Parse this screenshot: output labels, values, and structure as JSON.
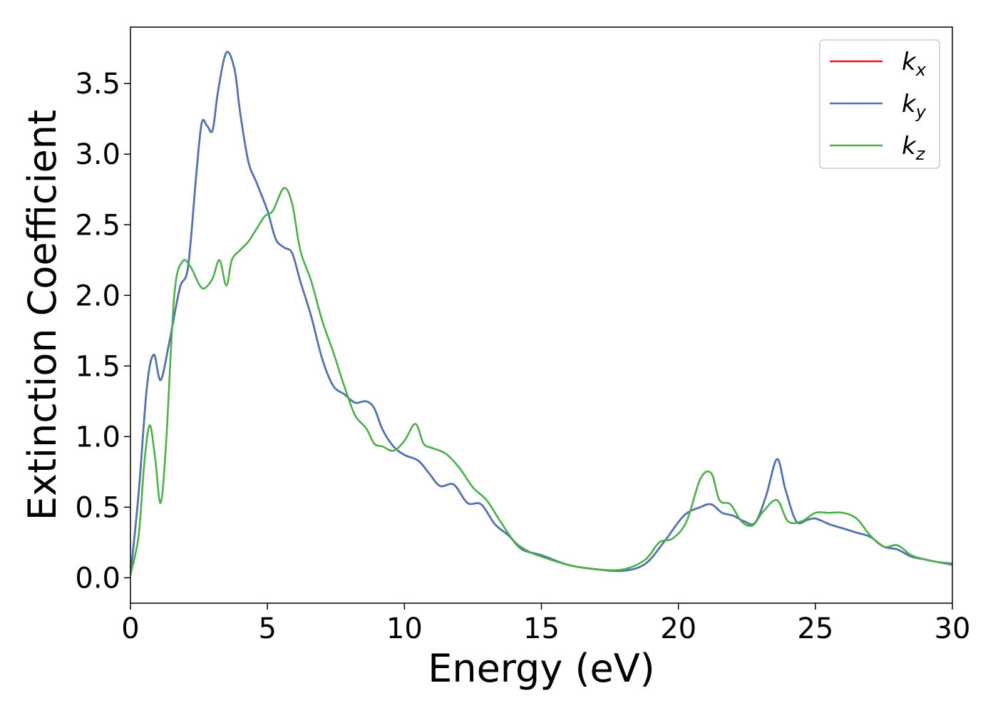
{
  "chart_data": {
    "type": "line",
    "title": "",
    "xlabel": "Energy (eV)",
    "ylabel": "Extinction Coefficient",
    "xlim": [
      0,
      30
    ],
    "ylim": [
      -0.18,
      3.9
    ],
    "xticks": [
      0,
      5,
      10,
      15,
      20,
      25,
      30
    ],
    "xtick_labels": [
      "0",
      "5",
      "10",
      "15",
      "20",
      "25",
      "30"
    ],
    "yticks": [
      0.0,
      0.5,
      1.0,
      1.5,
      2.0,
      2.5,
      3.0,
      3.5
    ],
    "ytick_labels": [
      "0.0",
      "0.5",
      "1.0",
      "1.5",
      "2.0",
      "2.5",
      "3.0",
      "3.5"
    ],
    "grid": false,
    "legend_position": "top-right",
    "series": [
      {
        "name": "k_x",
        "legend_base": "k",
        "legend_sub": "x",
        "color": "#e41a1c",
        "x": [
          0,
          0.3,
          0.6,
          0.85,
          1.1,
          1.4,
          1.8,
          2.1,
          2.4,
          2.6,
          2.8,
          3.0,
          3.2,
          3.5,
          3.8,
          4.0,
          4.3,
          4.6,
          5.0,
          5.3,
          5.6,
          5.9,
          6.2,
          6.6,
          7.0,
          7.4,
          7.8,
          8.2,
          8.6,
          8.9,
          9.2,
          9.6,
          10.0,
          10.5,
          10.9,
          11.3,
          11.8,
          12.3,
          12.8,
          13.3,
          13.8,
          14.3,
          15.0,
          16.0,
          17.0,
          18.0,
          18.8,
          19.5,
          20.2,
          20.8,
          21.2,
          21.6,
          22.0,
          22.4,
          22.8,
          23.2,
          23.6,
          23.9,
          24.3,
          24.7,
          25.0,
          25.5,
          26.0,
          26.5,
          27.0,
          27.5,
          28.0,
          28.5,
          29.0,
          29.5,
          30.0
        ],
        "values": [
          0.02,
          0.6,
          1.35,
          1.58,
          1.4,
          1.65,
          2.05,
          2.2,
          2.85,
          3.22,
          3.2,
          3.17,
          3.45,
          3.72,
          3.6,
          3.3,
          2.95,
          2.8,
          2.6,
          2.4,
          2.34,
          2.3,
          2.1,
          1.85,
          1.55,
          1.36,
          1.3,
          1.24,
          1.25,
          1.2,
          1.05,
          0.93,
          0.87,
          0.83,
          0.74,
          0.65,
          0.66,
          0.53,
          0.52,
          0.38,
          0.3,
          0.2,
          0.16,
          0.09,
          0.06,
          0.05,
          0.1,
          0.26,
          0.44,
          0.5,
          0.52,
          0.46,
          0.44,
          0.4,
          0.39,
          0.58,
          0.84,
          0.63,
          0.4,
          0.41,
          0.42,
          0.38,
          0.35,
          0.32,
          0.29,
          0.22,
          0.2,
          0.15,
          0.13,
          0.11,
          0.1
        ]
      },
      {
        "name": "k_y",
        "legend_base": "k",
        "legend_sub": "y",
        "color": "#4a77b3",
        "x": [
          0,
          0.3,
          0.6,
          0.85,
          1.1,
          1.4,
          1.8,
          2.1,
          2.4,
          2.6,
          2.8,
          3.0,
          3.2,
          3.5,
          3.8,
          4.0,
          4.3,
          4.6,
          5.0,
          5.3,
          5.6,
          5.9,
          6.2,
          6.6,
          7.0,
          7.4,
          7.8,
          8.2,
          8.6,
          8.9,
          9.2,
          9.6,
          10.0,
          10.5,
          10.9,
          11.3,
          11.8,
          12.3,
          12.8,
          13.3,
          13.8,
          14.3,
          15.0,
          16.0,
          17.0,
          18.0,
          18.8,
          19.5,
          20.2,
          20.8,
          21.2,
          21.6,
          22.0,
          22.4,
          22.8,
          23.2,
          23.6,
          23.9,
          24.3,
          24.7,
          25.0,
          25.5,
          26.0,
          26.5,
          27.0,
          27.5,
          28.0,
          28.5,
          29.0,
          29.5,
          30.0
        ],
        "values": [
          0.02,
          0.6,
          1.35,
          1.58,
          1.4,
          1.65,
          2.05,
          2.2,
          2.85,
          3.22,
          3.2,
          3.17,
          3.45,
          3.72,
          3.6,
          3.3,
          2.95,
          2.8,
          2.6,
          2.4,
          2.34,
          2.3,
          2.1,
          1.85,
          1.55,
          1.36,
          1.3,
          1.24,
          1.25,
          1.2,
          1.05,
          0.93,
          0.87,
          0.83,
          0.74,
          0.65,
          0.66,
          0.53,
          0.52,
          0.38,
          0.3,
          0.2,
          0.16,
          0.09,
          0.06,
          0.05,
          0.1,
          0.26,
          0.44,
          0.5,
          0.52,
          0.46,
          0.44,
          0.4,
          0.39,
          0.58,
          0.84,
          0.63,
          0.4,
          0.41,
          0.42,
          0.38,
          0.35,
          0.32,
          0.29,
          0.22,
          0.2,
          0.15,
          0.13,
          0.11,
          0.1
        ]
      },
      {
        "name": "k_z",
        "legend_base": "k",
        "legend_sub": "z",
        "color": "#4daf4a",
        "x": [
          0,
          0.3,
          0.5,
          0.7,
          0.9,
          1.1,
          1.3,
          1.6,
          1.9,
          2.2,
          2.5,
          2.7,
          3.0,
          3.25,
          3.5,
          3.7,
          4.0,
          4.3,
          4.6,
          4.9,
          5.2,
          5.6,
          5.9,
          6.2,
          6.6,
          7.0,
          7.4,
          7.8,
          8.2,
          8.6,
          8.9,
          9.2,
          9.6,
          10.0,
          10.4,
          10.7,
          11.0,
          11.5,
          12.0,
          12.5,
          13.0,
          13.5,
          14.0,
          14.5,
          15.0,
          16.0,
          17.0,
          18.0,
          18.8,
          19.3,
          19.8,
          20.3,
          20.8,
          21.2,
          21.5,
          21.9,
          22.3,
          22.7,
          23.1,
          23.6,
          24.0,
          24.5,
          25.0,
          25.5,
          26.0,
          26.5,
          27.0,
          27.5,
          28.0,
          28.5,
          29.0,
          29.5,
          30.0
        ],
        "values": [
          0.02,
          0.3,
          0.8,
          1.08,
          0.85,
          0.53,
          0.95,
          2.0,
          2.24,
          2.2,
          2.08,
          2.05,
          2.12,
          2.25,
          2.07,
          2.25,
          2.32,
          2.38,
          2.47,
          2.56,
          2.6,
          2.76,
          2.65,
          2.32,
          2.1,
          1.82,
          1.6,
          1.36,
          1.15,
          1.06,
          0.95,
          0.93,
          0.9,
          0.97,
          1.09,
          0.95,
          0.92,
          0.88,
          0.78,
          0.64,
          0.55,
          0.4,
          0.26,
          0.19,
          0.15,
          0.09,
          0.06,
          0.06,
          0.13,
          0.25,
          0.28,
          0.4,
          0.7,
          0.74,
          0.55,
          0.52,
          0.4,
          0.37,
          0.47,
          0.55,
          0.4,
          0.4,
          0.46,
          0.46,
          0.46,
          0.42,
          0.3,
          0.22,
          0.23,
          0.16,
          0.13,
          0.11,
          0.09
        ]
      }
    ]
  }
}
